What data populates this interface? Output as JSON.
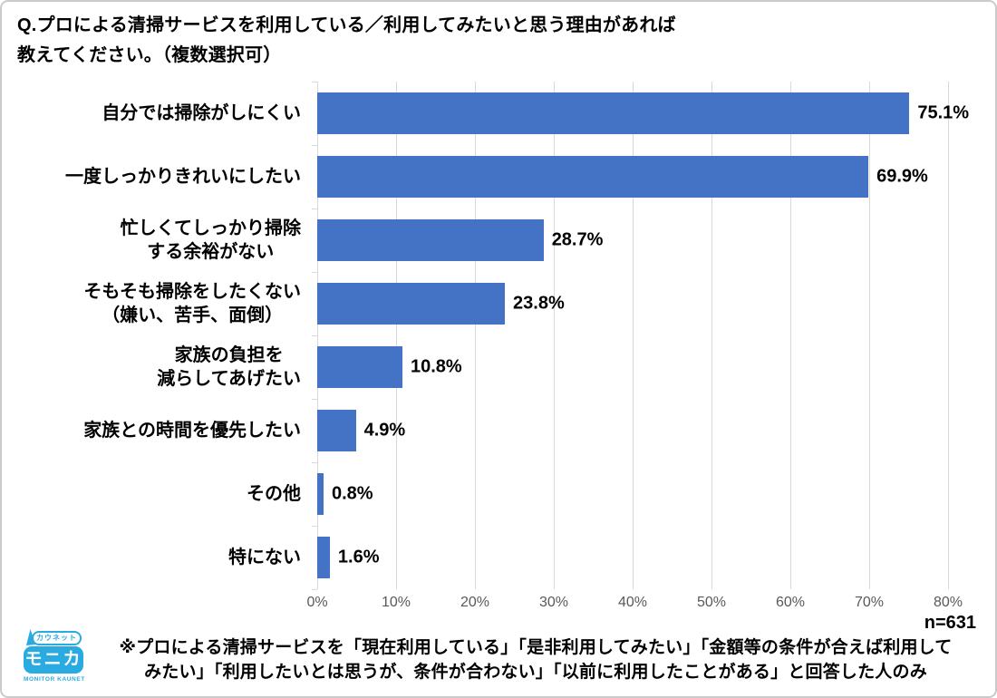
{
  "title": {
    "lines": [
      "Q.プロによる清掃サービスを利用している／利用してみたいと思う理由があれば",
      "教えてください。（複数選択可）"
    ]
  },
  "chart_data": {
    "type": "bar",
    "orientation": "horizontal",
    "title": "Q.プロによる清掃サービスを利用している／利用してみたいと思う理由があれば教えてください。（複数選択可）",
    "categories": [
      "自分では掃除がしにくい",
      "一度しっかりきれいにしたい",
      "忙しくてしっかり掃除\nする余裕がない",
      "そもそも掃除をしたくない\n（嫌い、苦手、面倒）",
      "家族の負担を\n減らしてあげたい",
      "家族との時間を優先したい",
      "その他",
      "特にない"
    ],
    "values": [
      75.1,
      69.9,
      28.7,
      23.8,
      10.8,
      4.9,
      0.8,
      1.6
    ],
    "xlim": [
      0,
      80
    ],
    "x_tick_labels": [
      "0%",
      "10%",
      "20%",
      "30%",
      "40%",
      "50%",
      "60%",
      "70%",
      "80%"
    ],
    "grid": true,
    "bar_color": "#4472C4",
    "gridline_color": "#d9d9d9",
    "axis_label_color": "#595959",
    "sample_size": "n=631"
  },
  "footer": {
    "note_lines": [
      "※プロによる清掃サービスを「現在利用している」「是非利用してみたい」「金額等の条件が合えば利用して",
      "みたい」「利用したいとは思うが、条件が合わない」「以前に利用したことがある」と回答した人のみ"
    ],
    "logo": {
      "top_text": "カウネット",
      "main_text": "モニカ",
      "bottom_text": "MONITOR KAUNET",
      "color": "#29ABE2"
    }
  }
}
